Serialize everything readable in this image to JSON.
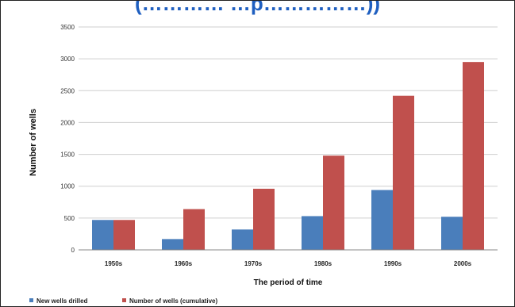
{
  "title_fragment": "(………… …p……………))",
  "chart_data": {
    "type": "bar",
    "categories": [
      "1950s",
      "1960s",
      "1970s",
      "1980s",
      "1990s",
      "2000s"
    ],
    "series": [
      {
        "name": "New wells drilled",
        "color": "#4a7ebb",
        "values": [
          470,
          170,
          320,
          530,
          940,
          520
        ]
      },
      {
        "name": "Number of wells (cumulative)",
        "color": "#c0504d",
        "values": [
          470,
          640,
          960,
          1480,
          2420,
          2950
        ]
      }
    ],
    "xlabel": "The period of time",
    "ylabel": "Number of wells",
    "ylim": [
      0,
      3500
    ],
    "yticks": [
      0,
      500,
      1000,
      1500,
      2000,
      2500,
      3000,
      3500
    ],
    "grid": true,
    "legend": "bottom-left"
  }
}
